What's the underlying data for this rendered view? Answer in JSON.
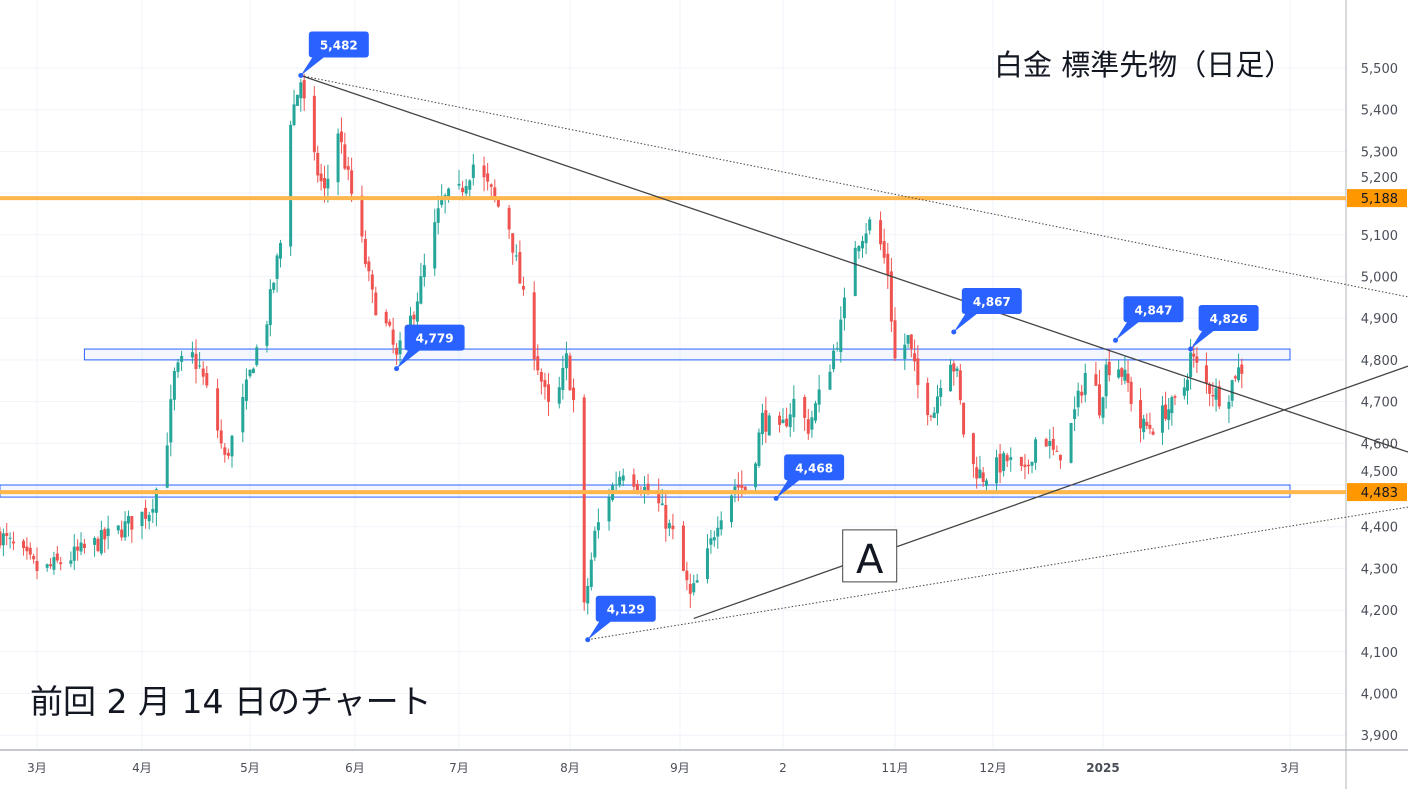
{
  "title": "白金 標準先物（日足）",
  "note": "前回 2 月 14 日のチャート",
  "chart_data": {
    "type": "candlestick",
    "title": "白金 標準先物（日足）",
    "ylim": [
      3850,
      5600
    ],
    "y_ticks": [
      3900,
      4000,
      4100,
      4200,
      4300,
      4400,
      4500,
      4600,
      4700,
      4800,
      4900,
      5000,
      5100,
      5200,
      5300,
      5400,
      5500
    ],
    "y_tick_labels": [
      "3,900",
      "4,000",
      "4,100",
      "4,200",
      "4,300",
      "4,400",
      "4,500",
      "4,600",
      "4,700",
      "4,800",
      "4,900",
      "5,000",
      "5,100",
      "5,200",
      "5,300",
      "5,400",
      "5,500"
    ],
    "x_ticks": [
      {
        "date": "2024-03-01",
        "label": "3月"
      },
      {
        "date": "2024-04-01",
        "label": "4月"
      },
      {
        "date": "2024-05-01",
        "label": "5月"
      },
      {
        "date": "2024-06-01",
        "label": "6月"
      },
      {
        "date": "2024-07-01",
        "label": "7月"
      },
      {
        "date": "2024-08-01",
        "label": "8月"
      },
      {
        "date": "2024-09-01",
        "label": "9月"
      },
      {
        "date": "2024-10-01",
        "label": "2"
      },
      {
        "date": "2024-11-01",
        "label": "11月"
      },
      {
        "date": "2024-12-01",
        "label": "12月"
      },
      {
        "date": "2025-01-01",
        "label": "2025",
        "bold": true
      },
      {
        "date": "2025-03-01",
        "label": "3月"
      }
    ],
    "grid": true,
    "colors": {
      "up": "#26a69a",
      "down": "#ef5350",
      "level": "#ffb74d",
      "tag": "#ff9800",
      "zone": "#2962ff",
      "callout": "#2962ff",
      "trend": "#444444"
    },
    "price_path": [
      [
        "2024-02-19",
        4380
      ],
      [
        "2024-03-02",
        4290
      ],
      [
        "2024-03-14",
        4340
      ],
      [
        "2024-03-25",
        4390
      ],
      [
        "2024-04-03",
        4440
      ],
      [
        "2024-04-07",
        4540
      ],
      [
        "2024-04-10",
        4760
      ],
      [
        "2024-04-14",
        4820
      ],
      [
        "2024-04-17",
        4780
      ],
      [
        "2024-04-21",
        4670
      ],
      [
        "2024-04-24",
        4560
      ],
      [
        "2024-04-28",
        4660
      ],
      [
        "2024-05-02",
        4800
      ],
      [
        "2024-05-06",
        4900
      ],
      [
        "2024-05-10",
        5080
      ],
      [
        "2024-05-13",
        5380
      ],
      [
        "2024-05-16",
        5470
      ],
      [
        "2024-05-19",
        5300
      ],
      [
        "2024-05-23",
        5200
      ],
      [
        "2024-05-27",
        5350
      ],
      [
        "2024-06-02",
        5120
      ],
      [
        "2024-06-06",
        4950
      ],
      [
        "2024-06-11",
        4860
      ],
      [
        "2024-06-13",
        4800
      ],
      [
        "2024-06-18",
        4920
      ],
      [
        "2024-06-22",
        5050
      ],
      [
        "2024-06-26",
        5180
      ],
      [
        "2024-07-01",
        5200
      ],
      [
        "2024-07-05",
        5270
      ],
      [
        "2024-07-10",
        5200
      ],
      [
        "2024-07-15",
        5120
      ],
      [
        "2024-07-20",
        4900
      ],
      [
        "2024-07-24",
        4750
      ],
      [
        "2024-07-27",
        4650
      ],
      [
        "2024-07-31",
        4800
      ],
      [
        "2024-08-02",
        4700
      ],
      [
        "2024-08-05",
        4200
      ],
      [
        "2024-08-08",
        4380
      ],
      [
        "2024-08-12",
        4480
      ],
      [
        "2024-08-16",
        4540
      ],
      [
        "2024-08-21",
        4500
      ],
      [
        "2024-08-26",
        4450
      ],
      [
        "2024-08-30",
        4380
      ],
      [
        "2024-09-04",
        4230
      ],
      [
        "2024-09-08",
        4300
      ],
      [
        "2024-09-12",
        4420
      ],
      [
        "2024-09-17",
        4500
      ],
      [
        "2024-09-21",
        4490
      ],
      [
        "2024-09-25",
        4660
      ],
      [
        "2024-09-30",
        4620
      ],
      [
        "2024-10-04",
        4700
      ],
      [
        "2024-10-08",
        4640
      ],
      [
        "2024-10-13",
        4760
      ],
      [
        "2024-10-17",
        4880
      ],
      [
        "2024-10-21",
        5080
      ],
      [
        "2024-10-26",
        5140
      ],
      [
        "2024-10-30",
        5010
      ],
      [
        "2024-11-01",
        4800
      ],
      [
        "2024-11-05",
        4850
      ],
      [
        "2024-11-09",
        4700
      ],
      [
        "2024-11-13",
        4680
      ],
      [
        "2024-11-17",
        4830
      ],
      [
        "2024-11-20",
        4760
      ],
      [
        "2024-11-23",
        4560
      ],
      [
        "2024-11-28",
        4520
      ],
      [
        "2024-12-05",
        4560
      ],
      [
        "2024-12-10",
        4520
      ],
      [
        "2024-12-14",
        4640
      ],
      [
        "2024-12-19",
        4560
      ],
      [
        "2024-12-23",
        4640
      ],
      [
        "2024-12-28",
        4800
      ],
      [
        "2024-12-31",
        4690
      ],
      [
        "2025-01-02",
        4780
      ],
      [
        "2025-01-05",
        4800
      ],
      [
        "2025-01-09",
        4740
      ],
      [
        "2025-01-12",
        4640
      ],
      [
        "2025-01-17",
        4640
      ],
      [
        "2025-01-21",
        4680
      ],
      [
        "2025-01-26",
        4700
      ],
      [
        "2025-01-29",
        4810
      ],
      [
        "2025-02-03",
        4740
      ],
      [
        "2025-02-06",
        4720
      ],
      [
        "2025-02-09",
        4700
      ],
      [
        "2025-02-12",
        4770
      ],
      [
        "2025-02-14",
        4780
      ]
    ],
    "horizontal_levels": [
      {
        "price": 5188,
        "label": "5,188"
      },
      {
        "price": 4483,
        "label": "4,483"
      }
    ],
    "zones": [
      {
        "from": "2024-03-15",
        "to": "2025-03-01",
        "low": 4800,
        "high": 4826
      },
      {
        "from": "2024-02-19",
        "to": "2025-03-01",
        "low": 4471,
        "high": 4500
      }
    ],
    "trendlines": [
      {
        "style": "solid",
        "from": [
          "2024-05-16",
          5482
        ],
        "to": [
          "2025-04-06",
          4579
        ]
      },
      {
        "style": "dotted",
        "from": [
          "2024-05-16",
          5482
        ],
        "to": [
          "2025-04-06",
          4951
        ]
      },
      {
        "style": "solid",
        "from": [
          "2024-09-05",
          4180
        ],
        "to": [
          "2025-04-06",
          4785
        ]
      },
      {
        "style": "dotted",
        "from": [
          "2024-08-06",
          4129
        ],
        "to": [
          "2025-04-06",
          4447
        ]
      }
    ],
    "callouts": [
      {
        "date": "2024-05-16",
        "price": 5482,
        "label": "5,482"
      },
      {
        "date": "2024-06-13",
        "price": 4779,
        "label": "4,779"
      },
      {
        "date": "2024-08-06",
        "price": 4129,
        "label": "4,129"
      },
      {
        "date": "2024-09-29",
        "price": 4468,
        "label": "4,468"
      },
      {
        "date": "2024-11-19",
        "price": 4867,
        "label": "4,867"
      },
      {
        "date": "2025-01-05",
        "price": 4847,
        "label": "4,847"
      },
      {
        "date": "2025-01-29",
        "price": 4826,
        "label": "4,826"
      }
    ],
    "text_box": {
      "date": "2024-10-25",
      "price": 4330,
      "label": "A"
    }
  }
}
